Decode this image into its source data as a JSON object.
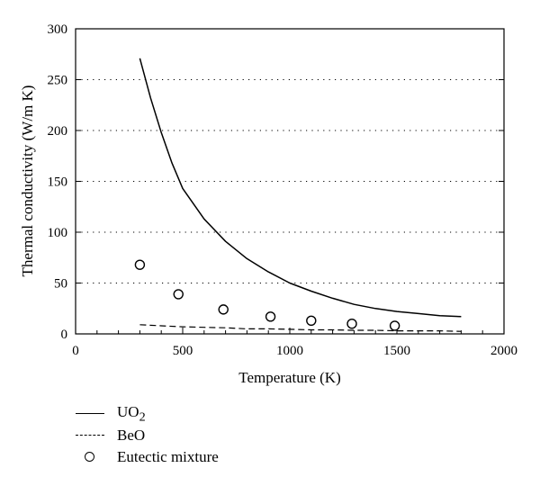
{
  "chart_data": {
    "type": "line",
    "title": "",
    "xlabel": "Temperature (K)",
    "ylabel": "Thermal conductivity (W/m K)",
    "xlim": [
      0,
      2000
    ],
    "ylim": [
      0,
      300
    ],
    "xticks": [
      0,
      500,
      1000,
      1500,
      2000
    ],
    "yticks": [
      0,
      50,
      100,
      150,
      200,
      250,
      300
    ],
    "grid": "horizontal dotted",
    "legend_position": "below",
    "series": [
      {
        "name": "UO2",
        "style": "solid",
        "x": [
          300,
          350,
          400,
          450,
          500,
          600,
          700,
          800,
          900,
          1000,
          1100,
          1200,
          1300,
          1400,
          1500,
          1600,
          1700,
          1800
        ],
        "y": [
          271,
          232,
          198,
          168,
          143,
          113,
          91,
          74,
          61,
          50,
          42,
          35,
          29,
          25,
          22,
          20,
          18,
          17
        ]
      },
      {
        "name": "BeO",
        "style": "dashed",
        "x": [
          300,
          400,
          500,
          600,
          700,
          800,
          900,
          1000,
          1100,
          1200,
          1300,
          1400,
          1500,
          1600,
          1700,
          1800
        ],
        "y": [
          9,
          8,
          7,
          6.5,
          6,
          5,
          5,
          4.5,
          4,
          4,
          3.5,
          3.5,
          3,
          3,
          3,
          2.5
        ]
      },
      {
        "name": "Eutectic mixture",
        "style": "markers",
        "x": [
          300,
          480,
          690,
          910,
          1100,
          1290,
          1490
        ],
        "y": [
          68,
          39,
          24,
          17,
          13,
          10,
          8
        ]
      }
    ],
    "legend": [
      {
        "symbol": "solid",
        "label": "UO",
        "subscript": "2"
      },
      {
        "symbol": "dashed",
        "label": "BeO",
        "subscript": ""
      },
      {
        "symbol": "circle",
        "label": "Eutectic mixture",
        "subscript": ""
      }
    ]
  }
}
